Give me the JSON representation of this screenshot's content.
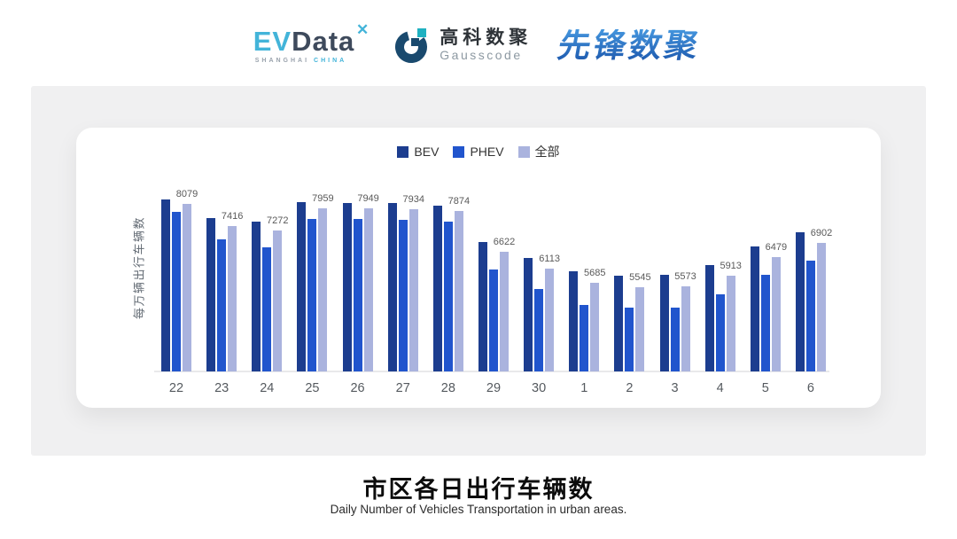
{
  "header": {
    "evdata": {
      "ev": "EV",
      "data": "Data",
      "spark": "✕",
      "tagline_left": "SHANGHAI",
      "tagline_right": "CHINA"
    },
    "gausscode": {
      "name_cn": "高科数聚",
      "name_en": "Gausscode"
    },
    "xianfeng": {
      "name": "先锋数聚"
    }
  },
  "chart_data": {
    "type": "bar",
    "categories": [
      "22",
      "23",
      "24",
      "25",
      "26",
      "27",
      "28",
      "29",
      "30",
      "1",
      "2",
      "3",
      "4",
      "5",
      "6"
    ],
    "series": [
      {
        "name": "BEV",
        "color": "#1c3d8f",
        "values": [
          8230,
          7650,
          7550,
          8140,
          8125,
          8115,
          8035,
          6930,
          6455,
          6050,
          5895,
          5940,
          6230,
          6785,
          7215
        ]
      },
      {
        "name": "PHEV",
        "color": "#2155cd",
        "values": [
          7845,
          7000,
          6770,
          7640,
          7620,
          7600,
          7540,
          6095,
          5510,
          5025,
          4925,
          4925,
          5350,
          5925,
          6375
        ]
      },
      {
        "name": "全部",
        "color": "#aab3de",
        "values": [
          8079,
          7416,
          7272,
          7959,
          7949,
          7934,
          7874,
          6622,
          6113,
          5685,
          5545,
          5573,
          5913,
          6479,
          6902
        ]
      }
    ],
    "data_label_series": "全部",
    "data_labels": [
      "8079",
      "7416",
      "7272",
      "7959",
      "7949",
      "7934",
      "7874",
      "6622",
      "6113",
      "5685",
      "5545",
      "5573",
      "5913",
      "6479",
      "6902"
    ],
    "ylabel": "每万辆出行车辆数",
    "xlabel": "",
    "ylim": [
      3000,
      8600
    ],
    "grid": false,
    "legend_position": "top-center"
  },
  "footer": {
    "title": "市区各日出行车辆数",
    "subtitle": "Daily Number of Vehicles Transportation in urban areas."
  }
}
